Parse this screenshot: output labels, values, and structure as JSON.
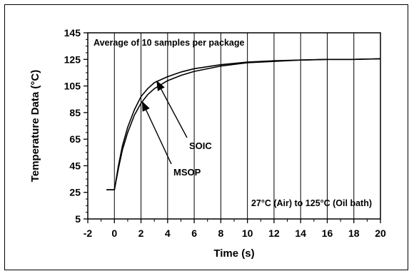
{
  "chart_data": {
    "type": "line",
    "title": "",
    "xlabel": "Time (s)",
    "ylabel": "Temperature Data (°C)",
    "xlim": [
      -2,
      20
    ],
    "ylim": [
      5,
      145
    ],
    "x_ticks": [
      "-2",
      "0",
      "2",
      "4",
      "6",
      "8",
      "10",
      "12",
      "14",
      "16",
      "18",
      "20"
    ],
    "y_ticks": [
      "5",
      "25",
      "45",
      "65",
      "85",
      "105",
      "125",
      "145"
    ],
    "grid": "vertical",
    "annotations": {
      "top_left": "Average of 10 samples per package",
      "bottom_right": "27°C (Air) to 125°C (Oil bath)"
    },
    "series": [
      {
        "name": "SOIC",
        "x": [
          -0.6,
          0,
          0.3,
          0.6,
          1,
          1.5,
          2,
          2.5,
          3,
          4,
          5,
          6,
          8,
          10,
          12,
          14,
          16,
          18,
          20
        ],
        "y": [
          27,
          27,
          45,
          60,
          74,
          87,
          97,
          103,
          107.5,
          112,
          115.5,
          118,
          121,
          123,
          124,
          124.5,
          125,
          125,
          125.5
        ]
      },
      {
        "name": "MSOP",
        "x": [
          -0.6,
          0,
          0.3,
          0.6,
          1,
          1.5,
          2,
          2.5,
          3,
          4,
          5,
          6,
          8,
          10,
          12,
          14,
          16,
          18,
          20
        ],
        "y": [
          27,
          27,
          43,
          57,
          70,
          83,
          92,
          98.5,
          103,
          109,
          113,
          116,
          120,
          122.5,
          123.5,
          124.5,
          125,
          125,
          125.5
        ]
      }
    ],
    "callouts": [
      {
        "series": "SOIC",
        "label": "SOIC",
        "point_x": 3.2,
        "point_y": 108.5
      },
      {
        "series": "MSOP",
        "label": "MSOP",
        "point_x": 2.1,
        "point_y": 93
      }
    ]
  }
}
